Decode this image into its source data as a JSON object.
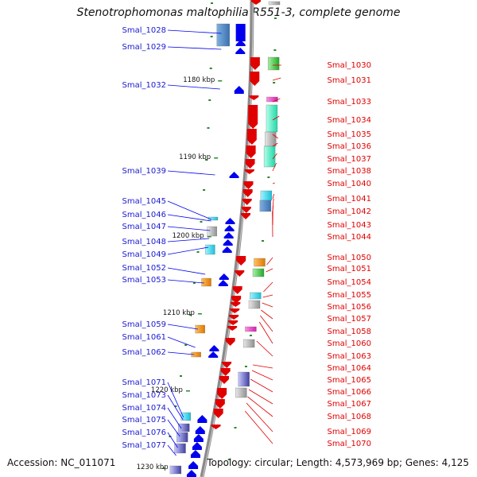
{
  "title": "Stenotrophomonas maltophilia R551-3, complete genome",
  "footer": {
    "accession": "Accession: NC_011071",
    "summary": "Topology: circular; Length: 4,573,969 bp; Genes: 4,125"
  },
  "colors": {
    "forward_gene": "#e00000",
    "reverse_gene": "#0000ee",
    "backbone": "#8a8a8a",
    "tick": "#2a8a2a"
  },
  "kbp_labels": [
    "1180 kbp",
    "1190 kbp",
    "1200 kbp",
    "1210 kbp",
    "1220 kbp",
    "1230 kbp"
  ],
  "left_genes": [
    "Smal_1028",
    "Smal_1029",
    "Smal_1032",
    "Smal_1039",
    "Smal_1045",
    "Smal_1046",
    "Smal_1047",
    "Smal_1048",
    "Smal_1049",
    "Smal_1052",
    "Smal_1053",
    "Smal_1059",
    "Smal_1061",
    "Smal_1062",
    "Smal_1071",
    "Smal_1073",
    "Smal_1074",
    "Smal_1075",
    "Smal_1076",
    "Smal_1077"
  ],
  "right_genes": [
    "Smal_1030",
    "Smal_1031",
    "Smal_1033",
    "Smal_1034",
    "Smal_1035",
    "Smal_1036",
    "Smal_1037",
    "Smal_1038",
    "Smal_1040",
    "Smal_1041",
    "Smal_1042",
    "Smal_1043",
    "Smal_1044",
    "Smal_1050",
    "Smal_1051",
    "Smal_1054",
    "Smal_1055",
    "Smal_1056",
    "Smal_1057",
    "Smal_1058",
    "Smal_1060",
    "Smal_1063",
    "Smal_1064",
    "Smal_1065",
    "Smal_1066",
    "Smal_1067",
    "Smal_1068",
    "Smal_1069",
    "Smal_1070"
  ]
}
